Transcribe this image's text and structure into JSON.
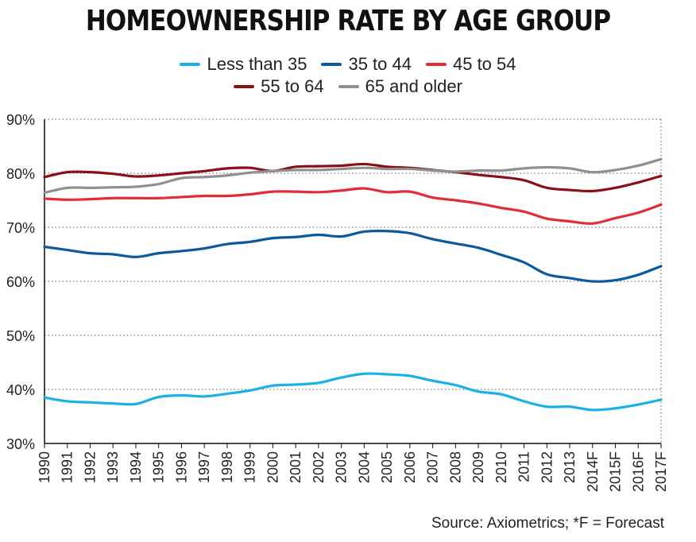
{
  "chart_data": {
    "type": "line",
    "title": "HOMEOWNERSHIP RATE BY AGE GROUP",
    "xlabel": "",
    "ylabel": "",
    "categories": [
      "1990",
      "1991",
      "1992",
      "1993",
      "1994",
      "1995",
      "1996",
      "1997",
      "1998",
      "1999",
      "2000",
      "2001",
      "2002",
      "2003",
      "2004",
      "2005",
      "2006",
      "2007",
      "2008",
      "2009",
      "2010",
      "2011",
      "2012",
      "2013",
      "2014F",
      "2015F",
      "2016F",
      "2017F"
    ],
    "y_ticks": [
      "30%",
      "40%",
      "50%",
      "60%",
      "70%",
      "80%",
      "90%"
    ],
    "ylim": [
      30,
      90
    ],
    "grid": "horizontal dotted",
    "legend": "top-center",
    "source": "Source: Axiometrics; *F = Forecast",
    "series": [
      {
        "name": "Less than 35",
        "color": "#1ab2e6",
        "values": [
          38.5,
          37.8,
          37.6,
          37.4,
          37.3,
          38.6,
          38.9,
          38.7,
          39.2,
          39.8,
          40.7,
          40.9,
          41.2,
          42.2,
          42.9,
          42.8,
          42.5,
          41.6,
          40.8,
          39.6,
          39.1,
          37.8,
          36.8,
          36.8,
          36.2,
          36.5,
          37.2,
          38.1
        ]
      },
      {
        "name": "35 to 44",
        "color": "#0c5a9e",
        "values": [
          66.4,
          65.8,
          65.2,
          65.0,
          64.5,
          65.2,
          65.6,
          66.1,
          66.9,
          67.3,
          68.0,
          68.2,
          68.6,
          68.3,
          69.2,
          69.3,
          68.9,
          67.8,
          67.0,
          66.2,
          64.9,
          63.5,
          61.3,
          60.6,
          60.0,
          60.2,
          61.2,
          62.8
        ]
      },
      {
        "name": "45 to 54",
        "color": "#e22c37",
        "values": [
          75.3,
          75.1,
          75.2,
          75.4,
          75.4,
          75.4,
          75.6,
          75.8,
          75.8,
          76.1,
          76.6,
          76.6,
          76.5,
          76.8,
          77.2,
          76.5,
          76.6,
          75.5,
          75.0,
          74.4,
          73.6,
          72.9,
          71.6,
          71.1,
          70.7,
          71.7,
          72.7,
          74.2
        ]
      },
      {
        "name": "55 to 64",
        "color": "#8b1016",
        "values": [
          79.3,
          80.2,
          80.2,
          79.9,
          79.4,
          79.6,
          80.0,
          80.4,
          80.9,
          81.0,
          80.4,
          81.2,
          81.3,
          81.4,
          81.7,
          81.2,
          81.0,
          80.6,
          80.2,
          79.7,
          79.3,
          78.7,
          77.3,
          76.9,
          76.7,
          77.3,
          78.3,
          79.5
        ]
      },
      {
        "name": "65 and older",
        "color": "#909090",
        "values": [
          76.4,
          77.3,
          77.3,
          77.4,
          77.5,
          78.0,
          79.1,
          79.3,
          79.6,
          80.1,
          80.4,
          80.6,
          80.6,
          80.8,
          81.0,
          80.8,
          80.8,
          80.5,
          80.3,
          80.5,
          80.5,
          80.9,
          81.1,
          80.9,
          80.2,
          80.6,
          81.4,
          82.6
        ]
      }
    ]
  }
}
